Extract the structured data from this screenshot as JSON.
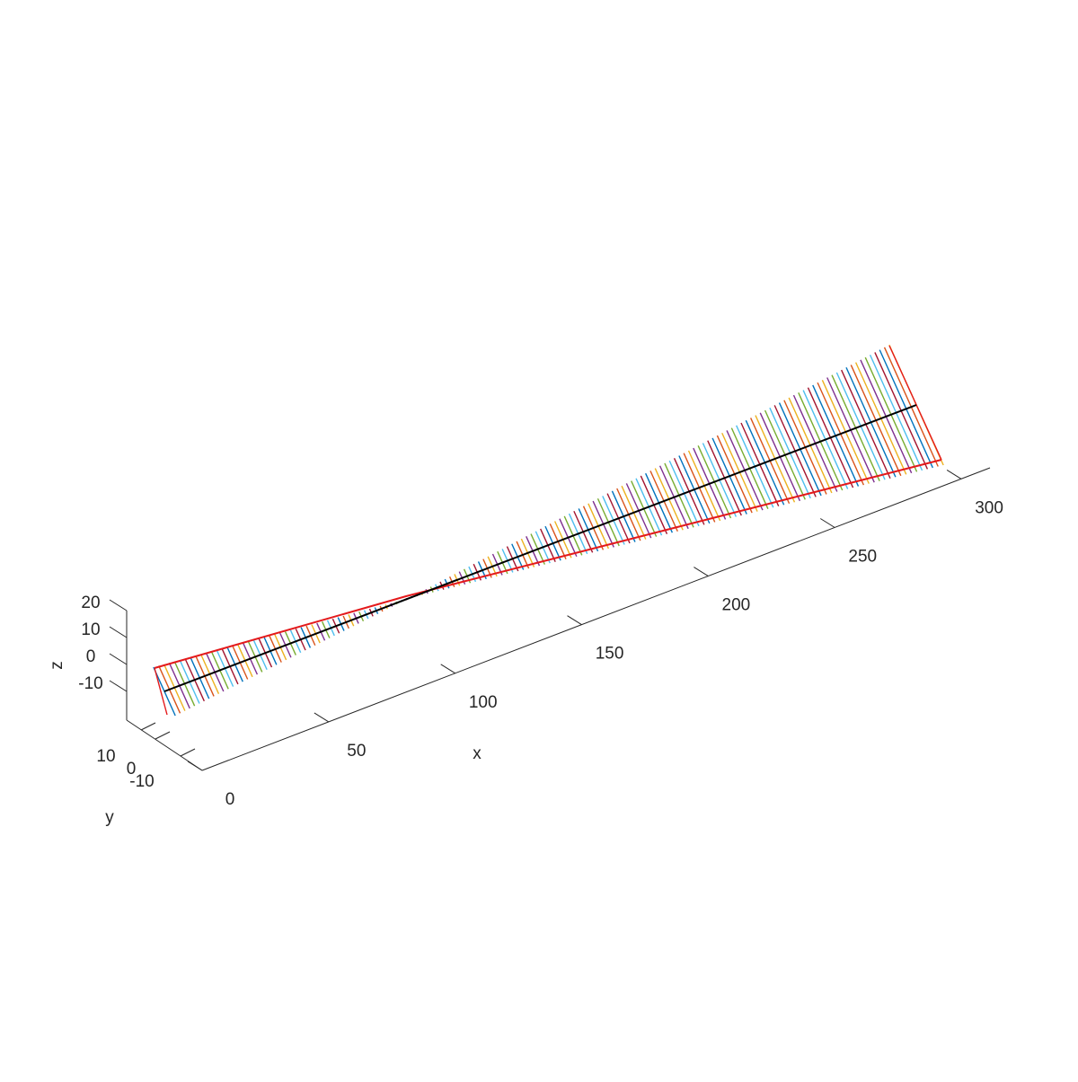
{
  "chart_data": {
    "type": "line",
    "subtype": "3d-line-plot",
    "title": "",
    "xlabel": "x",
    "ylabel": "y",
    "zlabel": "z",
    "x_ticks": [
      0,
      50,
      100,
      150,
      200,
      250,
      300
    ],
    "y_ticks": [
      -10,
      0,
      10
    ],
    "z_ticks": [
      -10,
      0,
      10,
      20
    ],
    "xlim": [
      0,
      325
    ],
    "ylim": [
      -15,
      15
    ],
    "zlim": [
      -20,
      22
    ],
    "grid": false,
    "legend": "none",
    "colors": {
      "axis": "#262626",
      "centerline": "#000000",
      "envelope": "#e41a1c",
      "cycle": [
        "#0072BD",
        "#D95319",
        "#EDB120",
        "#7E2F8E",
        "#77AC30",
        "#4DBEEE",
        "#A2142F"
      ]
    },
    "series": [
      {
        "role": "centerline",
        "x": [
          10,
          300
        ],
        "y": [
          0,
          0
        ],
        "z": [
          -2,
          20
        ]
      },
      {
        "role": "envelope-lower",
        "x": [
          10,
          100,
          300
        ],
        "y": [
          0,
          0,
          0
        ],
        "z": [
          5,
          8.5,
          1
        ]
      },
      {
        "role": "segments",
        "description": "repeated short colored segments spanning the fan between envelopes",
        "x_start": 10,
        "x_end": 300,
        "count": 150,
        "waist_x": 100,
        "start_halfwidth_z": 13,
        "end_halfwidth_z": 23
      }
    ]
  }
}
